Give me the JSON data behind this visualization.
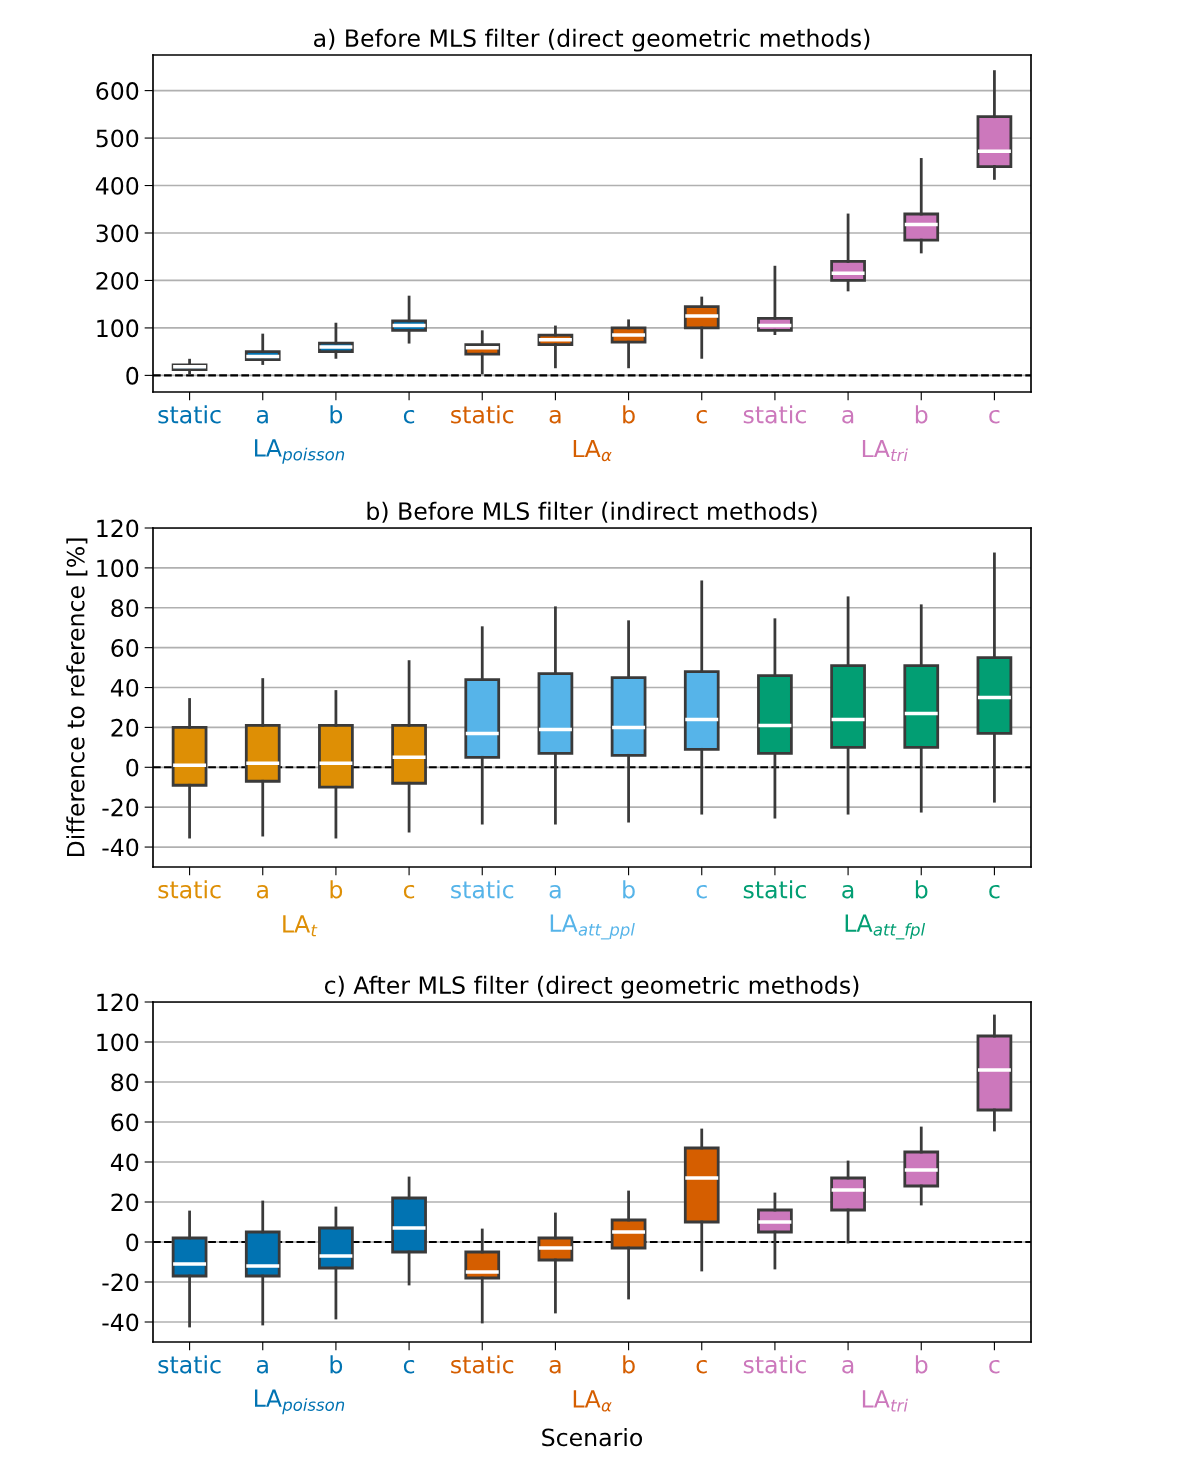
{
  "chart_data": [
    {
      "type": "box",
      "title": "a) Before MLS filter (direct geometric methods)",
      "categories": [
        "static",
        "a",
        "b",
        "c",
        "static",
        "a",
        "b",
        "c",
        "static",
        "a",
        "b",
        "c"
      ],
      "ylim": [
        -35,
        675
      ],
      "yticks": [
        0,
        100,
        200,
        300,
        400,
        500,
        600
      ],
      "grid": "y",
      "ref_lines": [
        {
          "axis": "y",
          "value": 0,
          "color": "#000000",
          "line_style": "dashed"
        }
      ],
      "series": [
        {
          "name": "LA$_{poisson}$",
          "color": "#0173b2",
          "boxes": [
            {
              "low": 5,
              "q1": 12,
              "median": 18,
              "q3": 22,
              "high": 32
            },
            {
              "low": 25,
              "q1": 33,
              "median": 40,
              "q3": 50,
              "high": 85
            },
            {
              "low": 38,
              "q1": 50,
              "median": 60,
              "q3": 68,
              "high": 108
            },
            {
              "low": 70,
              "q1": 95,
              "median": 105,
              "q3": 115,
              "high": 165
            },
            null,
            null,
            null,
            null,
            null,
            null,
            null,
            null
          ]
        },
        {
          "name": "LA$_{α}$",
          "color": "#d55e00",
          "boxes": [
            null,
            null,
            null,
            null,
            {
              "low": 5,
              "q1": 45,
              "median": 58,
              "q3": 65,
              "high": 92
            },
            {
              "low": 18,
              "q1": 65,
              "median": 75,
              "q3": 85,
              "high": 102
            },
            {
              "low": 18,
              "q1": 70,
              "median": 85,
              "q3": 100,
              "high": 115
            },
            {
              "low": 38,
              "q1": 100,
              "median": 125,
              "q3": 145,
              "high": 163
            },
            null,
            null,
            null,
            null
          ]
        },
        {
          "name": "LA$_{tri}$",
          "color": "#cc78bc",
          "boxes": [
            null,
            null,
            null,
            null,
            null,
            null,
            null,
            null,
            {
              "low": 88,
              "q1": 95,
              "median": 105,
              "q3": 120,
              "high": 228
            },
            {
              "low": 180,
              "q1": 200,
              "median": 215,
              "q3": 240,
              "high": 338
            },
            {
              "low": 260,
              "q1": 285,
              "median": 318,
              "q3": 340,
              "high": 455
            },
            {
              "low": 415,
              "q1": 440,
              "median": 472,
              "q3": 545,
              "high": 640
            }
          ]
        }
      ]
    },
    {
      "type": "box",
      "title": "b) Before MLS filter (indirect methods)",
      "ylabel": "Difference to reference [%]",
      "categories": [
        "static",
        "a",
        "b",
        "c",
        "static",
        "a",
        "b",
        "c",
        "static",
        "a",
        "b",
        "c"
      ],
      "ylim": [
        -50,
        120
      ],
      "yticks": [
        -40,
        -20,
        0,
        20,
        40,
        60,
        80,
        100,
        120
      ],
      "grid": "y",
      "ref_lines": [
        {
          "axis": "y",
          "value": 0,
          "color": "#000000",
          "line_style": "dashed"
        }
      ],
      "series": [
        {
          "name": "LA$_{t}$",
          "color": "#de8f05",
          "boxes": [
            {
              "low": -35,
              "q1": -9,
              "median": 1,
              "q3": 20,
              "high": 34
            },
            {
              "low": -34,
              "q1": -7,
              "median": 2,
              "q3": 21,
              "high": 44
            },
            {
              "low": -35,
              "q1": -10,
              "median": 2,
              "q3": 21,
              "high": 38
            },
            {
              "low": -32,
              "q1": -8,
              "median": 5,
              "q3": 21,
              "high": 53
            },
            null,
            null,
            null,
            null,
            null,
            null,
            null,
            null
          ]
        },
        {
          "name": "LA$_{att_ppl}$",
          "color": "#56b4e9",
          "boxes": [
            null,
            null,
            null,
            null,
            {
              "low": -28,
              "q1": 5,
              "median": 17,
              "q3": 44,
              "high": 70
            },
            {
              "low": -28,
              "q1": 7,
              "median": 19,
              "q3": 47,
              "high": 80
            },
            {
              "low": -27,
              "q1": 6,
              "median": 20,
              "q3": 45,
              "high": 73
            },
            {
              "low": -23,
              "q1": 9,
              "median": 24,
              "q3": 48,
              "high": 93
            },
            null,
            null,
            null,
            null
          ]
        },
        {
          "name": "LA$_{att_fpl}$",
          "color": "#029e73",
          "boxes": [
            null,
            null,
            null,
            null,
            null,
            null,
            null,
            null,
            {
              "low": -25,
              "q1": 7,
              "median": 21,
              "q3": 46,
              "high": 74
            },
            {
              "low": -23,
              "q1": 10,
              "median": 24,
              "q3": 51,
              "high": 85
            },
            {
              "low": -22,
              "q1": 10,
              "median": 27,
              "q3": 51,
              "high": 81
            },
            {
              "low": -17,
              "q1": 17,
              "median": 35,
              "q3": 55,
              "high": 107
            }
          ]
        }
      ]
    },
    {
      "type": "box",
      "title": "c) After MLS filter (direct geometric methods)",
      "xlabel": "Scenario",
      "categories": [
        "static",
        "a",
        "b",
        "c",
        "static",
        "a",
        "b",
        "c",
        "static",
        "a",
        "b",
        "c"
      ],
      "ylim": [
        -50,
        120
      ],
      "yticks": [
        -40,
        -20,
        0,
        20,
        40,
        60,
        80,
        100,
        120
      ],
      "grid": "y",
      "ref_lines": [
        {
          "axis": "y",
          "value": 0,
          "color": "#000000",
          "line_style": "dashed"
        }
      ],
      "series": [
        {
          "name": "LA$_{poisson}$",
          "color": "#0173b2",
          "boxes": [
            {
              "low": -42,
              "q1": -17,
              "median": -11,
              "q3": 2,
              "high": 15
            },
            {
              "low": -41,
              "q1": -17,
              "median": -12,
              "q3": 5,
              "high": 20
            },
            {
              "low": -38,
              "q1": -13,
              "median": -7,
              "q3": 7,
              "high": 17
            },
            {
              "low": -21,
              "q1": -5,
              "median": 7,
              "q3": 22,
              "high": 32
            },
            null,
            null,
            null,
            null,
            null,
            null,
            null,
            null
          ]
        },
        {
          "name": "LA$_{α}$",
          "color": "#d55e00",
          "boxes": [
            null,
            null,
            null,
            null,
            {
              "low": -40,
              "q1": -18,
              "median": -15,
              "q3": -5,
              "high": 6
            },
            {
              "low": -35,
              "q1": -9,
              "median": -3,
              "q3": 2,
              "high": 14
            },
            {
              "low": -28,
              "q1": -3,
              "median": 5,
              "q3": 11,
              "high": 25
            },
            {
              "low": -14,
              "q1": 10,
              "median": 32,
              "q3": 47,
              "high": 56
            },
            null,
            null,
            null,
            null
          ]
        },
        {
          "name": "LA$_{tri}$",
          "color": "#cc78bc",
          "boxes": [
            null,
            null,
            null,
            null,
            null,
            null,
            null,
            null,
            {
              "low": -13,
              "q1": 5,
              "median": 10,
              "q3": 16,
              "high": 24
            },
            {
              "low": 0,
              "q1": 16,
              "median": 26,
              "q3": 32,
              "high": 40
            },
            {
              "low": 19,
              "q1": 28,
              "median": 36,
              "q3": 45,
              "high": 57
            },
            {
              "low": 56,
              "q1": 66,
              "median": 86,
              "q3": 103,
              "high": 113
            }
          ]
        }
      ]
    }
  ]
}
